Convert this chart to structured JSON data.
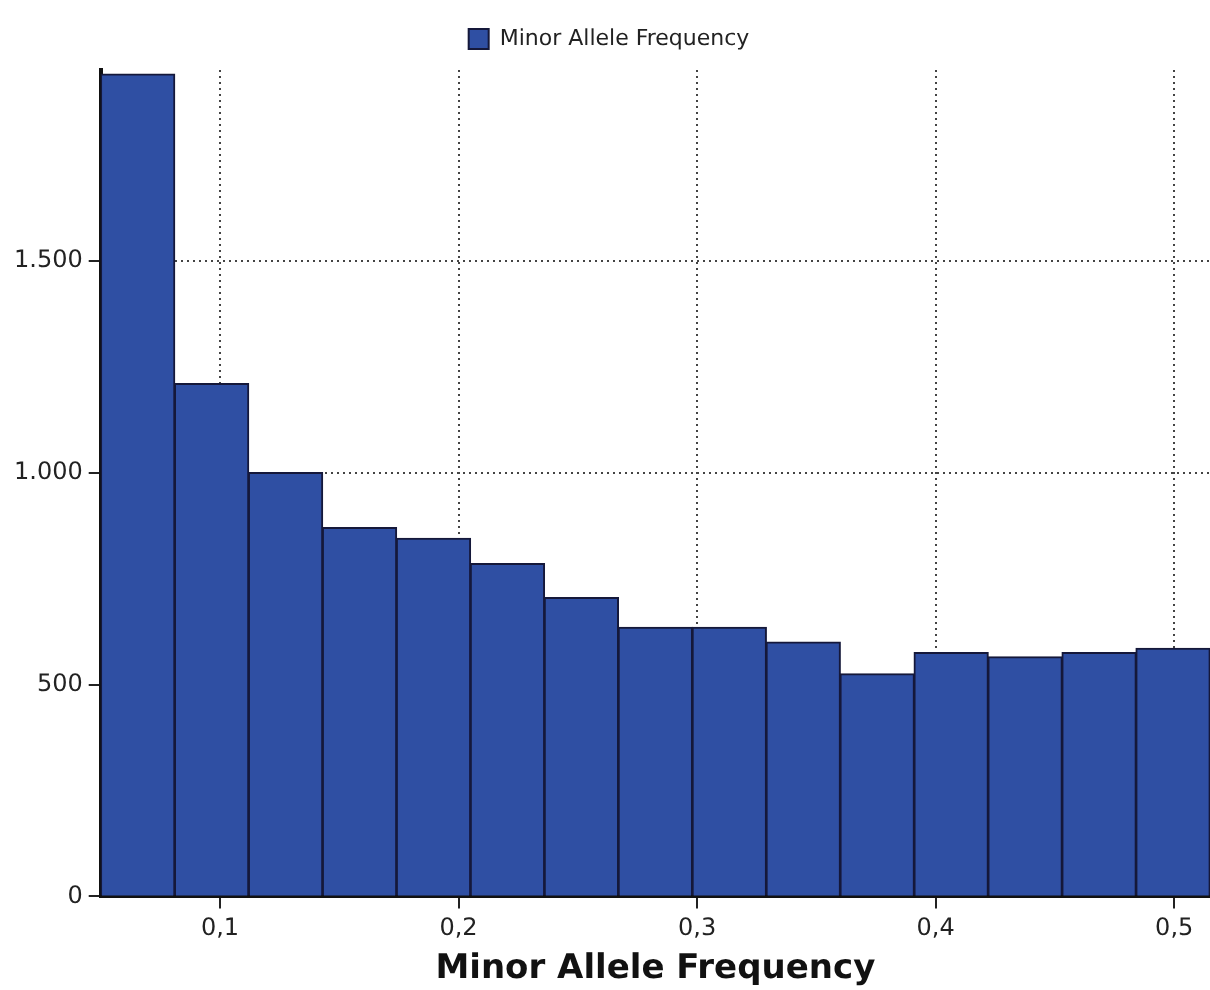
{
  "chart_data": {
    "type": "histogram",
    "xlabel": "Minor Allele Frequency",
    "bins": [
      0.05,
      0.081,
      0.112,
      0.143,
      0.174,
      0.205,
      0.236,
      0.267,
      0.298,
      0.329,
      0.36,
      0.391,
      0.422,
      0.453,
      0.484,
      0.515
    ],
    "series": [
      {
        "name": "Minor Allele Frequency",
        "color": "#2f4fa3",
        "values": [
          1940,
          1210,
          1000,
          870,
          845,
          785,
          705,
          635,
          635,
          600,
          525,
          575,
          565,
          575,
          585
        ]
      }
    ],
    "xlim": [
      0.05,
      0.515
    ],
    "ylim": [
      0,
      1950
    ],
    "xticks": [
      {
        "value": 0.1,
        "label": "0,1"
      },
      {
        "value": 0.2,
        "label": "0,2"
      },
      {
        "value": 0.3,
        "label": "0,3"
      },
      {
        "value": 0.4,
        "label": "0,4"
      },
      {
        "value": 0.5,
        "label": "0,5"
      }
    ],
    "yticks": [
      0,
      500,
      {
        "value": 1000,
        "label": "1.000"
      },
      {
        "value": 1500,
        "label": "1.500"
      }
    ],
    "grid": true,
    "legend": "top"
  }
}
